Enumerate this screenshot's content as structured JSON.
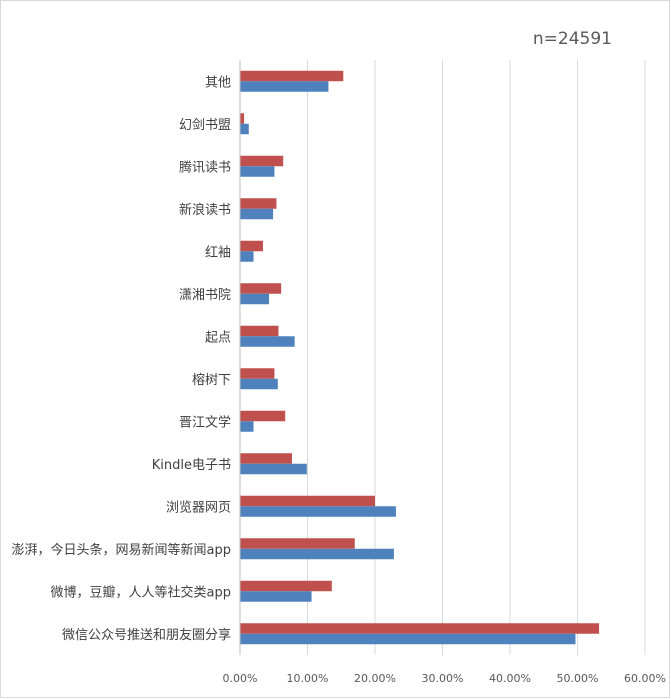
{
  "chart_data": {
    "type": "bar",
    "orientation": "horizontal",
    "annotation": "n=24591",
    "categories": [
      "其他",
      "幻剑书盟",
      "腾讯读书",
      "新浪读书",
      "红袖",
      "潇湘书院",
      "起点",
      "榕树下",
      "晋江文学",
      "Kindle电子书",
      "浏览器网页",
      "澎湃，今日头条，网易新闻等新闻app",
      "微博，豆瓣，人人等社交类app",
      "微信公众号推送和朋友圈分享"
    ],
    "series": [
      {
        "color": "#c0504d",
        "values": [
          15.3,
          0.6,
          6.4,
          5.4,
          3.4,
          6.1,
          5.7,
          5.1,
          6.7,
          7.7,
          20.0,
          17.0,
          13.6,
          53.2
        ]
      },
      {
        "color": "#4f81bd",
        "values": [
          13.1,
          1.3,
          5.1,
          4.9,
          2.0,
          4.3,
          8.1,
          5.6,
          2.0,
          9.9,
          23.1,
          22.8,
          10.6,
          49.7
        ]
      }
    ],
    "xlim": [
      0,
      60
    ],
    "xticks": [
      "0.00%",
      "10.00%",
      "20.00%",
      "30.00%",
      "40.00%",
      "50.00%",
      "60.00%"
    ],
    "grid": true,
    "legend": "none"
  }
}
